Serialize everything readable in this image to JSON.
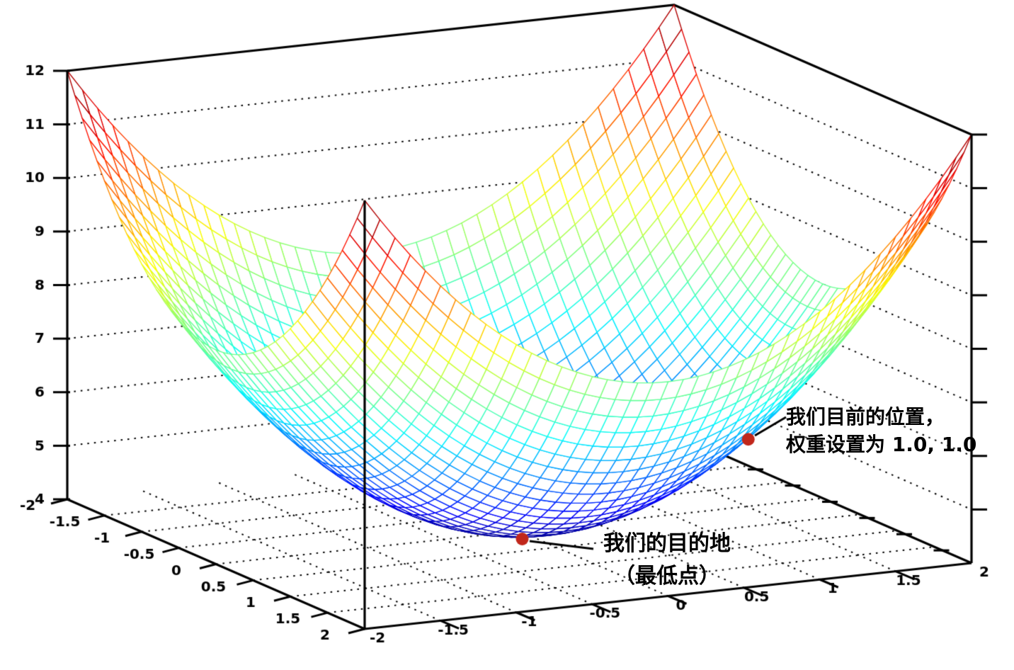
{
  "chart_data": {
    "type": "surface3d",
    "title": "",
    "background": "#ffffff",
    "axis_color": "#000000",
    "grid_style": "dotted",
    "surface": {
      "formula": "z = x^2 + y^2 + 4",
      "z_fn_terms": {
        "const": 4,
        "x2": 1,
        "y2": 1
      },
      "x_min": -2,
      "x_max": 2,
      "y_min": -2,
      "y_max": 2,
      "z_min": 4,
      "z_max": 12,
      "grid_step": 0.1,
      "colormap": "jet",
      "corner_value": 12,
      "minimum_value": 4
    },
    "axes": {
      "x_ticks": [
        -2,
        -1.5,
        -1,
        -0.5,
        0,
        0.5,
        1,
        1.5,
        2
      ],
      "x_tick_labels": [
        "-2",
        "-1.5",
        "-1",
        "-0.5",
        "0",
        "0.5",
        "1",
        "1.5",
        "2"
      ],
      "y_ticks": [
        -2,
        -1.5,
        -1,
        -0.5,
        0,
        0.5,
        1,
        1.5,
        2
      ],
      "y_tick_labels": [
        "-2",
        "-1.5",
        "-1",
        "-0.5",
        "0",
        "0.5",
        "1",
        "1.5",
        "2"
      ],
      "z_ticks": [
        4,
        5,
        6,
        7,
        8,
        9,
        10,
        11,
        12
      ],
      "z_tick_labels": [
        "4",
        "5",
        "6",
        "7",
        "8",
        "9",
        "10",
        "11",
        "12"
      ]
    },
    "markers": [
      {
        "x": 1,
        "y": 1,
        "z": 6,
        "color": "#c1271b",
        "label": "我们目前的位置，权重设置为 1.0, 1.0"
      },
      {
        "x": 0,
        "y": 0,
        "z": 4,
        "color": "#c1271b",
        "label": "我们的目的地（最低点）"
      }
    ],
    "annotations": [
      {
        "id": "current-position",
        "lines": [
          "我们目前的位置，",
          "权重设置为 1.0, 1.0"
        ]
      },
      {
        "id": "destination",
        "lines": [
          "我们的目的地",
          "（最低点）"
        ]
      }
    ]
  }
}
